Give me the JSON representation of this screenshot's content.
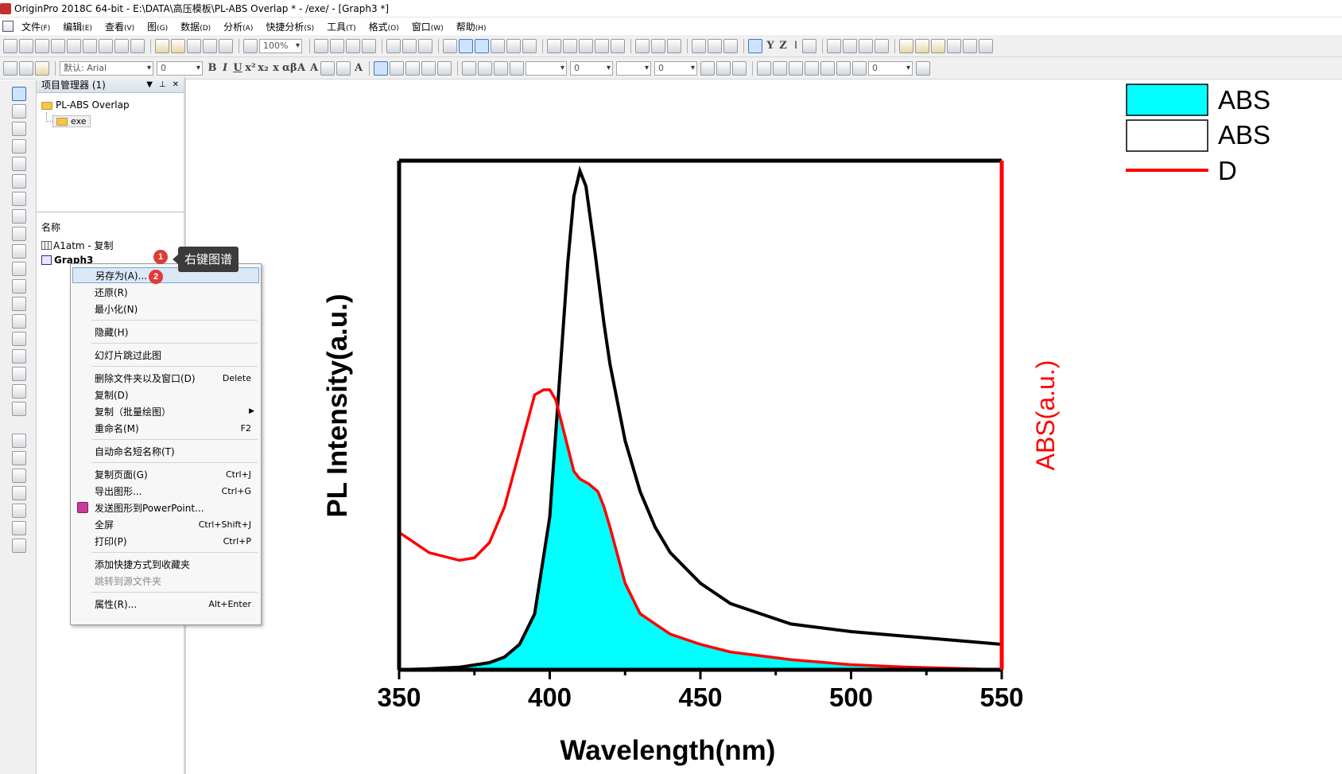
{
  "window": {
    "title": "OriginPro 2018C 64-bit - E:\\DATA\\高压模板\\PL-ABS Overlap * - /exe/ - [Graph3 *]"
  },
  "menu": [
    {
      "label": "文件",
      "key": "(F)"
    },
    {
      "label": "编辑",
      "key": "(E)"
    },
    {
      "label": "查看",
      "key": "(V)"
    },
    {
      "label": "图",
      "key": "(G)"
    },
    {
      "label": "数据",
      "key": "(D)"
    },
    {
      "label": "分析",
      "key": "(A)"
    },
    {
      "label": "快捷分析",
      "key": "(S)"
    },
    {
      "label": "工具",
      "key": "(T)"
    },
    {
      "label": "格式",
      "key": "(O)"
    },
    {
      "label": "窗口",
      "key": "(W)"
    },
    {
      "label": "帮助",
      "key": "(H)"
    }
  ],
  "toolbar": {
    "zoom": "100%",
    "font": "默认: Arial",
    "font_size": "0",
    "line_width": "0",
    "line_size": "0",
    "fill_value": "0"
  },
  "project_manager": {
    "title": "项目管理器 (1)",
    "root_folder": "PL-ABS Overlap",
    "sub_folder": "exe",
    "list_header": "名称",
    "items": [
      "A1atm - 复制",
      "Graph3"
    ]
  },
  "page_number": "1",
  "context_menu": {
    "items": [
      {
        "label": "另存为(A)...",
        "shortcut": ""
      },
      {
        "label": "还原(R)",
        "shortcut": ""
      },
      {
        "label": "最小化(N)",
        "shortcut": ""
      },
      {
        "label": "隐藏(H)",
        "shortcut": ""
      },
      {
        "label": "幻灯片跳过此图",
        "shortcut": ""
      },
      {
        "label": "删除文件夹以及窗口(D)",
        "shortcut": "Delete"
      },
      {
        "label": "复制(D)",
        "shortcut": ""
      },
      {
        "label": "复制（批量绘图）",
        "shortcut": ""
      },
      {
        "label": "重命名(M)",
        "shortcut": "F2"
      },
      {
        "label": "自动命名短名称(T)",
        "shortcut": ""
      },
      {
        "label": "复制页面(G)",
        "shortcut": "Ctrl+J"
      },
      {
        "label": "导出图形...",
        "shortcut": "Ctrl+G"
      },
      {
        "label": "发送图形到PowerPoint...",
        "shortcut": ""
      },
      {
        "label": "全屏",
        "shortcut": "Ctrl+Shift+J"
      },
      {
        "label": "打印(P)",
        "shortcut": "Ctrl+P"
      },
      {
        "label": "添加快捷方式到收藏夹",
        "shortcut": ""
      },
      {
        "label": "跳转到源文件夹",
        "shortcut": ""
      },
      {
        "label": "属性(R)...",
        "shortcut": "Alt+Enter"
      }
    ]
  },
  "callouts": {
    "badge1": "1",
    "badge2": "2",
    "tip_text": "右键图谱"
  },
  "colors": {
    "abs_fill": "#00ffff",
    "pl_line": "#000000",
    "d_line": "#ff0000",
    "right_axis": "#ff0000"
  },
  "chart_data": {
    "type": "line",
    "xlabel": "Wavelength(nm)",
    "ylabel": "PL Intensity(a.u.)",
    "y2label": "ABS(a.u.)",
    "xlim": [
      350,
      550
    ],
    "xticks": [
      350,
      400,
      450,
      500,
      550
    ],
    "ylim": [
      0,
      1
    ],
    "legend": {
      "placement": "top-right",
      "entries": [
        {
          "label": "ABS",
          "style": "filled-cyan"
        },
        {
          "label": "ABS",
          "style": "outline-black"
        },
        {
          "label": "D",
          "style": "red-line"
        }
      ]
    },
    "series": [
      {
        "style": "black-line",
        "x": [
          350,
          360,
          370,
          380,
          385,
          390,
          395,
          400,
          403,
          406,
          408,
          410,
          412,
          415,
          418,
          420,
          425,
          430,
          435,
          440,
          450,
          460,
          470,
          480,
          500,
          520,
          540,
          550
        ],
        "y": [
          0.0,
          0.002,
          0.005,
          0.014,
          0.025,
          0.05,
          0.11,
          0.3,
          0.55,
          0.8,
          0.93,
          0.98,
          0.95,
          0.82,
          0.68,
          0.6,
          0.45,
          0.35,
          0.28,
          0.23,
          0.17,
          0.13,
          0.11,
          0.09,
          0.075,
          0.065,
          0.055,
          0.05
        ]
      },
      {
        "style": "red-line-cyan-fill",
        "x": [
          350,
          360,
          370,
          375,
          380,
          385,
          390,
          395,
          398,
          400,
          402,
          405,
          408,
          410,
          413,
          416,
          418,
          420,
          425,
          430,
          440,
          450,
          460,
          480,
          500,
          520,
          540,
          550
        ],
        "y": [
          0.27,
          0.23,
          0.215,
          0.22,
          0.25,
          0.32,
          0.43,
          0.54,
          0.55,
          0.55,
          0.53,
          0.46,
          0.39,
          0.375,
          0.365,
          0.35,
          0.32,
          0.28,
          0.17,
          0.11,
          0.07,
          0.05,
          0.035,
          0.02,
          0.01,
          0.005,
          0.002,
          0.0
        ]
      }
    ]
  }
}
